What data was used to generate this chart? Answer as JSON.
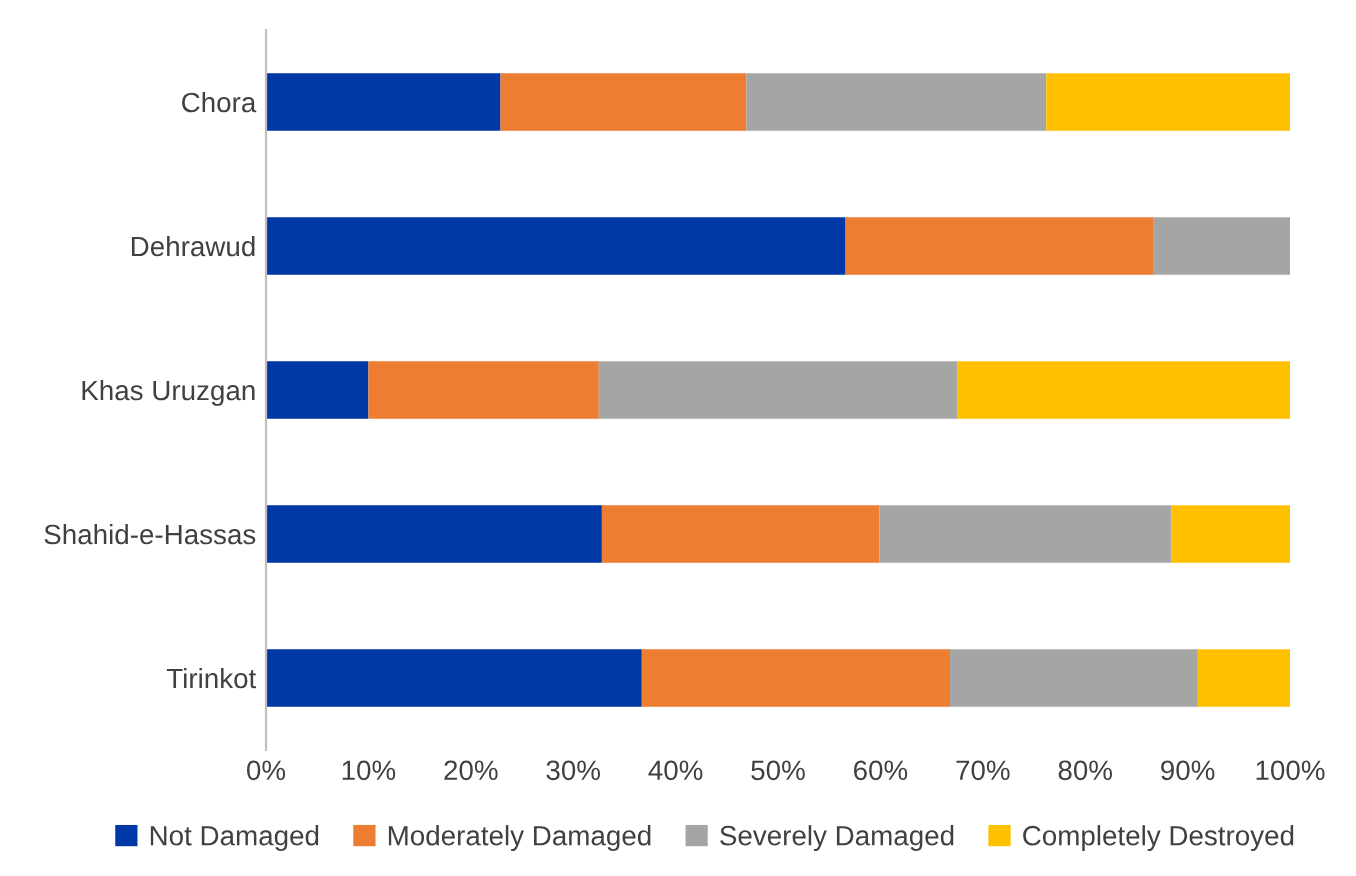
{
  "chart_data": {
    "type": "bar",
    "orientation": "horizontal",
    "stacked": true,
    "categories": [
      "Chora",
      "Dehrawud",
      "Khas Uruzgan",
      "Shahid-e-Hassas",
      "Tirinkot"
    ],
    "series": [
      {
        "name": "Not Damaged",
        "color": "#0038a8",
        "values": [
          22.9,
          56.6,
          10.0,
          32.8,
          36.7
        ]
      },
      {
        "name": "Moderately Damaged",
        "color": "#ed7d31",
        "values": [
          24.0,
          30.1,
          22.5,
          27.1,
          30.1
        ]
      },
      {
        "name": "Severely Damaged",
        "color": "#a5a5a5",
        "values": [
          29.3,
          13.3,
          35.0,
          28.5,
          24.2
        ]
      },
      {
        "name": "Completely Destroyed",
        "color": "#ffc000",
        "values": [
          23.8,
          0,
          32.5,
          11.6,
          9.0
        ]
      }
    ],
    "xlim": [
      0,
      100
    ],
    "xticks": [
      {
        "value": 0,
        "label": "0%"
      },
      {
        "value": 10,
        "label": "10%"
      },
      {
        "value": 20,
        "label": "20%"
      },
      {
        "value": 30,
        "label": "30%"
      },
      {
        "value": 40,
        "label": "40%"
      },
      {
        "value": 50,
        "label": "50%"
      },
      {
        "value": 60,
        "label": "60%"
      },
      {
        "value": 70,
        "label": "70%"
      },
      {
        "value": 80,
        "label": "80%"
      },
      {
        "value": 90,
        "label": "90%"
      },
      {
        "value": 100,
        "label": "100%"
      }
    ],
    "legend": "bottom",
    "grid": false
  }
}
